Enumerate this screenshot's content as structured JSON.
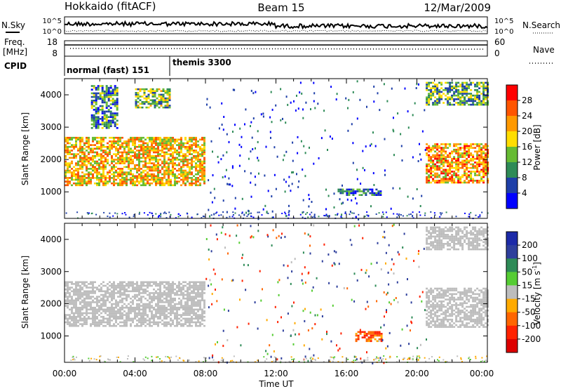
{
  "header": {
    "left": "Hokkaido (fitACF)",
    "center": "Beam 15",
    "right": "12/Mar/2009"
  },
  "top_panels": {
    "nsky_label": "N.Sky",
    "nsearch_label": "N.Search",
    "freq_label_line1": "Freq.",
    "freq_label_line2": "[MHz]",
    "nave_label": "Nave",
    "cpid_label": "CPID",
    "noise_left_ticks": [
      "10^5",
      "10^0"
    ],
    "noise_right_ticks": [
      "10^5",
      "10^0"
    ],
    "freq_left_ticks": [
      "18",
      "8"
    ],
    "freq_right_ticks": [
      "60",
      "0"
    ],
    "cpid_segments": [
      {
        "text": "normal (fast) 151"
      },
      {
        "text": "themis 3300"
      }
    ]
  },
  "axes": {
    "ylabel": "Slant Range [km]",
    "yticks": [
      "4000",
      "3000",
      "2000",
      "1000"
    ],
    "xticks": [
      "00:00",
      "04:00",
      "08:00",
      "12:00",
      "16:00",
      "20:00",
      "00:00"
    ],
    "xlabel": "Time UT"
  },
  "colorbars": {
    "power": {
      "label": "Power [dB]",
      "ticks": [
        "28",
        "24",
        "20",
        "16",
        "12",
        "8",
        "4"
      ],
      "colors": [
        "#ff0000",
        "#ff5500",
        "#ff9900",
        "#ffdd00",
        "#66bb33",
        "#2e8b57",
        "#1e3fa8",
        "#0000ff"
      ]
    },
    "velocity": {
      "label": "Velocity [m s",
      "label_sup": "-1",
      "label_end": "]",
      "ticks": [
        "200",
        "100",
        "50",
        "15",
        "-15",
        "-50",
        "-100",
        "-200"
      ],
      "colors": [
        "#1c2aa8",
        "#2e3f9c",
        "#2e8b57",
        "#55cc33",
        "#bdbdbd",
        "#ffaa00",
        "#ff6600",
        "#ff2200",
        "#dd0000"
      ]
    }
  },
  "chart_data": [
    {
      "type": "heatmap",
      "title": "Power",
      "xlabel": "Time UT",
      "ylabel": "Slant Range [km]",
      "xlim": [
        0,
        24
      ],
      "ylim": [
        180,
        4500
      ],
      "colorbar_range": [
        0,
        30
      ],
      "regions": [
        {
          "t_start": 0.0,
          "t_end": 8.0,
          "r_low": 1200,
          "r_high": 2700,
          "power": 20
        },
        {
          "t_start": 1.5,
          "t_end": 3.0,
          "r_low": 3000,
          "r_high": 4300,
          "power": 10
        },
        {
          "t_start": 4.0,
          "t_end": 6.0,
          "r_low": 3600,
          "r_high": 4200,
          "power": 14
        },
        {
          "t_start": 15.5,
          "t_end": 18.0,
          "r_low": 900,
          "r_high": 1100,
          "power": 8
        },
        {
          "t_start": 20.5,
          "t_end": 24.0,
          "r_low": 1300,
          "r_high": 2500,
          "power": 22
        },
        {
          "t_start": 20.5,
          "t_end": 24.0,
          "r_low": 3700,
          "r_high": 4400,
          "power": 12
        }
      ]
    },
    {
      "type": "heatmap",
      "title": "Velocity",
      "xlabel": "Time UT",
      "ylabel": "Slant Range [km]",
      "xlim": [
        0,
        24
      ],
      "ylim": [
        180,
        4500
      ],
      "colorbar_range": [
        -200,
        200
      ],
      "regions": [
        {
          "t_start": 0.0,
          "t_end": 8.0,
          "r_low": 1300,
          "r_high": 2700,
          "velocity": 0
        },
        {
          "t_start": 16.5,
          "t_end": 18.0,
          "r_low": 850,
          "r_high": 1150,
          "velocity": -90
        },
        {
          "t_start": 20.5,
          "t_end": 24.0,
          "r_low": 1300,
          "r_high": 2500,
          "velocity": 0
        },
        {
          "t_start": 20.5,
          "t_end": 24.0,
          "r_low": 3700,
          "r_high": 4400,
          "velocity": 0
        }
      ]
    }
  ]
}
